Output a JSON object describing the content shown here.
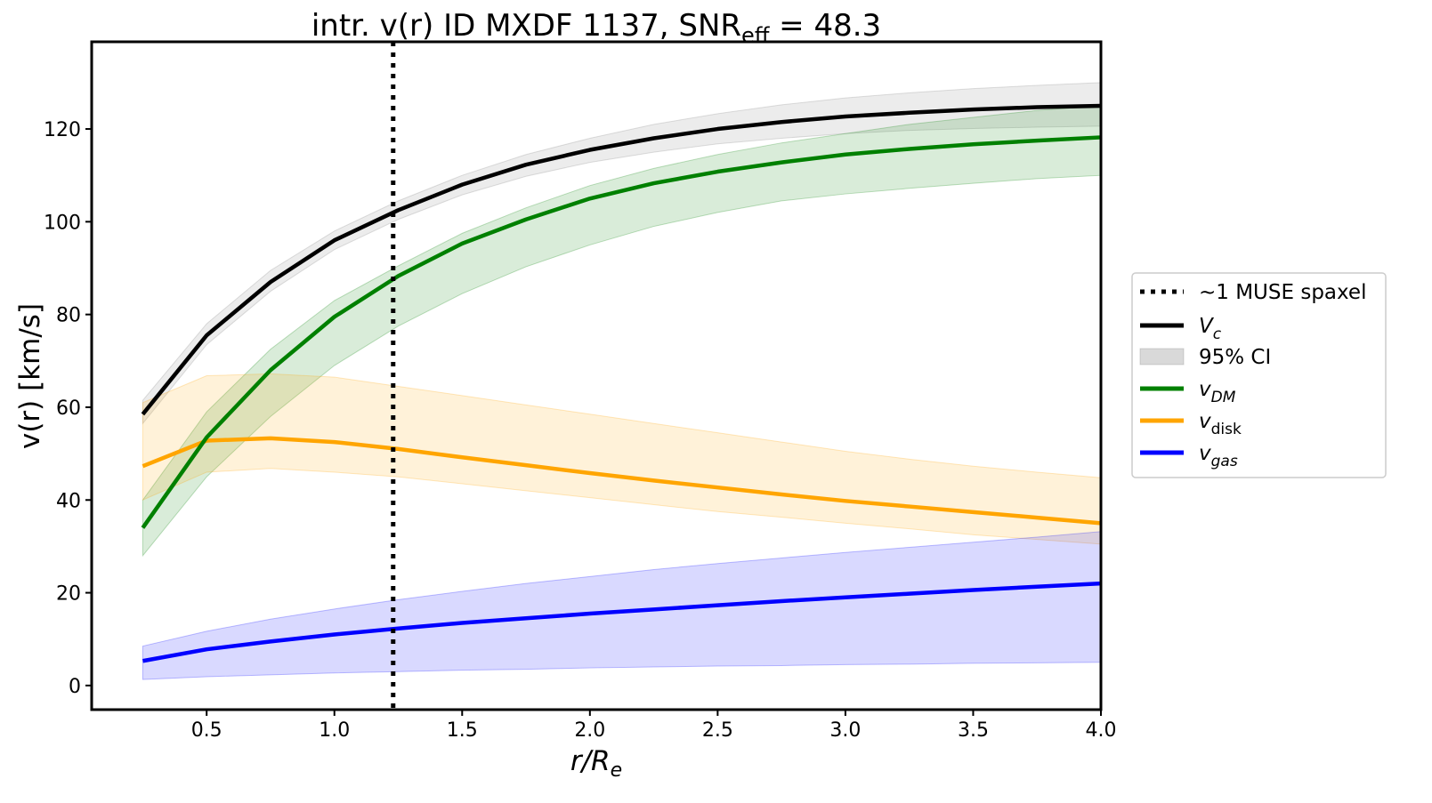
{
  "chart_data": {
    "type": "line",
    "title": {
      "prefix": "intr. v(r) ID MXDF 1137, SNR",
      "sub": "eff",
      "suffix": " = 48.3"
    },
    "xlabel": {
      "main": "r/R",
      "sub": "e"
    },
    "ylabel": "v(r) [km/s]",
    "xlim": [
      0.05,
      4.0
    ],
    "ylim": [
      -5.2,
      138.8
    ],
    "xticks": [
      0.5,
      1.0,
      1.5,
      2.0,
      2.5,
      3.0,
      3.5,
      4.0
    ],
    "xtick_labels": [
      "0.5",
      "1.0",
      "1.5",
      "2.0",
      "2.5",
      "3.0",
      "3.5",
      "4.0"
    ],
    "yticks": [
      0,
      20,
      40,
      60,
      80,
      100,
      120
    ],
    "ytick_labels": [
      "0",
      "20",
      "40",
      "60",
      "80",
      "100",
      "120"
    ],
    "grid": false,
    "legend_placement": "outside-right",
    "vline": {
      "x": 1.23,
      "label": "~1 MUSE spaxel",
      "color": "#000000"
    },
    "ci_label": "95% CI",
    "x": [
      0.25,
      0.5,
      0.75,
      1.0,
      1.25,
      1.5,
      1.75,
      2.0,
      2.25,
      2.5,
      2.75,
      3.0,
      3.25,
      3.5,
      3.75,
      4.0
    ],
    "series": [
      {
        "name": "V_c",
        "label_main": "V",
        "label_sub": "c",
        "color": "#000000",
        "band_color": "#808080",
        "values": [
          58.5,
          75.5,
          87,
          96,
          102.5,
          108,
          112.3,
          115.5,
          118,
          120,
          121.5,
          122.7,
          123.5,
          124.2,
          124.7,
          125
        ],
        "lower": [
          56.5,
          73.5,
          85,
          94,
          100.5,
          105.8,
          109.8,
          112.8,
          115,
          116.8,
          118,
          119,
          119.7,
          120.1,
          120.4,
          120.6
        ],
        "upper": [
          61.5,
          78,
          89.5,
          98,
          104.5,
          110,
          114.5,
          118,
          121,
          123.3,
          125.2,
          126.7,
          127.8,
          128.7,
          129.4,
          130
        ]
      },
      {
        "name": "v_DM",
        "label_main": "v",
        "label_sub": "DM",
        "color": "#008000",
        "band_color": "#008000",
        "values": [
          34,
          53.5,
          68,
          79.5,
          88.3,
          95.3,
          100.5,
          105,
          108.3,
          110.8,
          112.8,
          114.5,
          115.7,
          116.7,
          117.5,
          118.2
        ],
        "lower": [
          28,
          45,
          58,
          69,
          77.5,
          84.5,
          90.3,
          95,
          99,
          102,
          104.5,
          106,
          107.2,
          108.3,
          109.3,
          110
        ],
        "upper": [
          40,
          59,
          72.5,
          83,
          90.5,
          97.5,
          103,
          107.8,
          111.5,
          114.5,
          117,
          119,
          121,
          122.5,
          124,
          125
        ]
      },
      {
        "name": "v_disk",
        "label_main": "v",
        "label_sub": "disk",
        "color": "#FFA500",
        "band_color": "#FFA500",
        "values": [
          47.3,
          52.8,
          53.3,
          52.5,
          51,
          49.2,
          47.5,
          45.8,
          44.2,
          42.7,
          41.2,
          39.8,
          38.6,
          37.4,
          36.2,
          35
        ],
        "lower": [
          40,
          46,
          46.8,
          46,
          45,
          43.5,
          42,
          40.5,
          39,
          37.5,
          36.3,
          35,
          33.8,
          32.5,
          31.5,
          30.5
        ],
        "upper": [
          61,
          66.8,
          67.2,
          66.5,
          64.5,
          62.5,
          60.5,
          58.5,
          56.5,
          54.5,
          52.5,
          50.5,
          48.8,
          47.3,
          46,
          44.8
        ]
      },
      {
        "name": "v_gas",
        "label_main": "v",
        "label_sub": "gas",
        "color": "#0000FF",
        "band_color": "#0000FF",
        "values": [
          5.3,
          7.8,
          9.5,
          11,
          12.3,
          13.5,
          14.5,
          15.5,
          16.4,
          17.3,
          18.2,
          19,
          19.8,
          20.6,
          21.3,
          22
        ],
        "lower": [
          1.3,
          1.9,
          2.3,
          2.7,
          3,
          3.3,
          3.5,
          3.8,
          4,
          4.2,
          4.3,
          4.5,
          4.6,
          4.8,
          4.9,
          5
        ],
        "upper": [
          8.5,
          11.7,
          14.3,
          16.5,
          18.5,
          20.3,
          22,
          23.5,
          25,
          26.3,
          27.5,
          28.7,
          29.8,
          30.9,
          32,
          33.2
        ]
      }
    ]
  }
}
